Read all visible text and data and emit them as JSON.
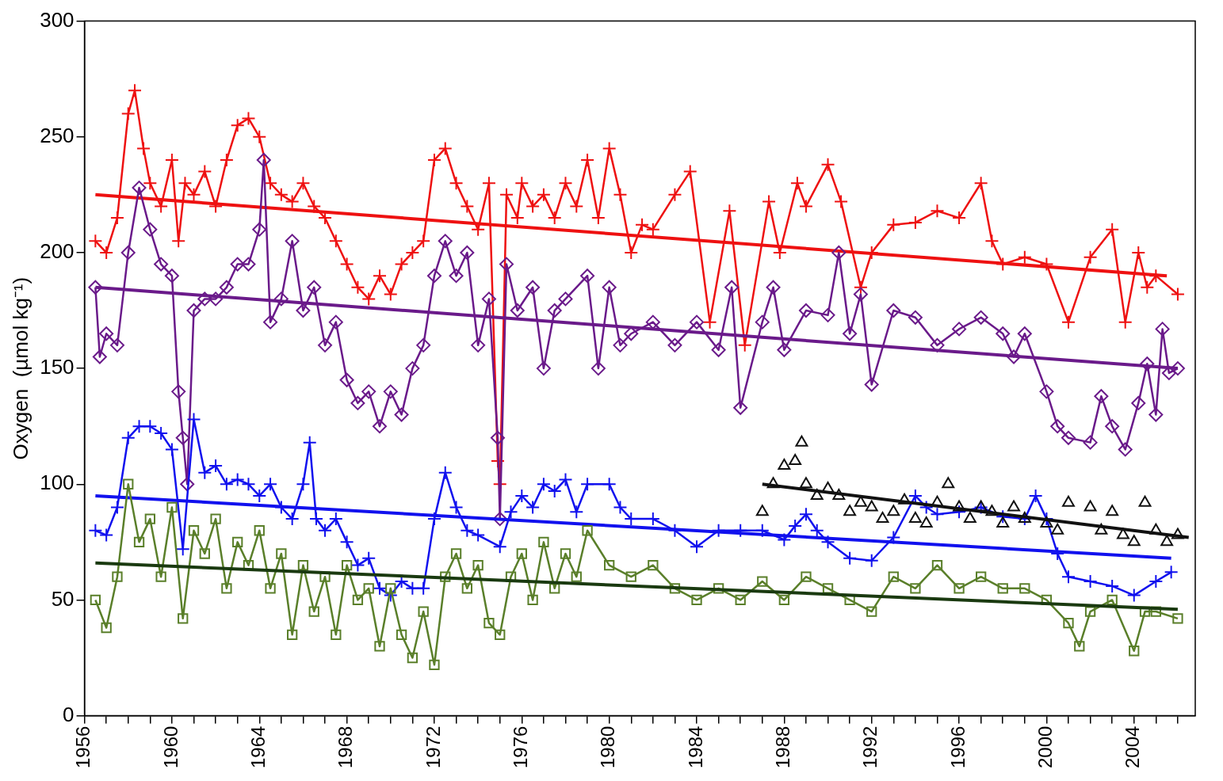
{
  "chart_data": {
    "type": "line",
    "ylabel": "Oxygen  (µmol kg⁻¹)",
    "xlim": [
      1956,
      2006.8
    ],
    "ylim": [
      0,
      300
    ],
    "yticks": [
      0,
      50,
      100,
      150,
      200,
      250,
      300
    ],
    "xticks": [
      1956,
      {
        "value": 1957,
        "label": null
      },
      {
        "value": 1958,
        "label": null
      },
      {
        "value": 1959,
        "label": null
      },
      1960,
      {
        "value": 1961,
        "label": null
      },
      {
        "value": 1962,
        "label": null
      },
      {
        "value": 1963,
        "label": null
      },
      1964,
      {
        "value": 1965,
        "label": null
      },
      {
        "value": 1966,
        "label": null
      },
      {
        "value": 1967,
        "label": null
      },
      1968,
      {
        "value": 1969,
        "label": null
      },
      {
        "value": 1970,
        "label": null
      },
      {
        "value": 1971,
        "label": null
      },
      1972,
      {
        "value": 1973,
        "label": null
      },
      {
        "value": 1974,
        "label": null
      },
      {
        "value": 1975,
        "label": null
      },
      1976,
      {
        "value": 1977,
        "label": null
      },
      {
        "value": 1978,
        "label": null
      },
      {
        "value": 1979,
        "label": null
      },
      1980,
      {
        "value": 1981,
        "label": null
      },
      {
        "value": 1982,
        "label": null
      },
      {
        "value": 1983,
        "label": null
      },
      1984,
      {
        "value": 1985,
        "label": null
      },
      {
        "value": 1986,
        "label": null
      },
      {
        "value": 1987,
        "label": null
      },
      1988,
      {
        "value": 1989,
        "label": null
      },
      {
        "value": 1990,
        "label": null
      },
      {
        "value": 1991,
        "label": null
      },
      1992,
      {
        "value": 1993,
        "label": null
      },
      {
        "value": 1994,
        "label": null
      },
      {
        "value": 1995,
        "label": null
      },
      1996,
      {
        "value": 1997,
        "label": null
      },
      {
        "value": 1998,
        "label": null
      },
      {
        "value": 1999,
        "label": null
      },
      2000,
      {
        "value": 2001,
        "label": null
      },
      {
        "value": 2002,
        "label": null
      },
      {
        "value": 2003,
        "label": null
      },
      2004,
      {
        "value": 2005,
        "label": null
      },
      {
        "value": 2006,
        "label": null
      }
    ],
    "grid": false,
    "legend": false,
    "series": [
      {
        "type": "line",
        "color": "#ee1111",
        "marker": "cross",
        "x": [
          1956.5,
          1957,
          1957.5,
          1958,
          1958.3,
          1958.7,
          1959,
          1959.5,
          1960,
          1960.3,
          1960.6,
          1961,
          1961.5,
          1962,
          1962.5,
          1963,
          1963.5,
          1964,
          1964.5,
          1965,
          1965.5,
          1966,
          1966.5,
          1967,
          1967.5,
          1968,
          1968.5,
          1969,
          1969.5,
          1970,
          1970.5,
          1971,
          1971.5,
          1972,
          1972.5,
          1973,
          1973.5,
          1974,
          1974.5,
          1974.9,
          1975,
          1975.3,
          1975.8,
          1976,
          1976.5,
          1977,
          1977.5,
          1978,
          1978.5,
          1979,
          1979.5,
          1980,
          1980.5,
          1981,
          1981.5,
          1982,
          1983,
          1983.7,
          1984.6,
          1985.5,
          1986.2,
          1987.3,
          1987.8,
          1988.6,
          1989,
          1990,
          1990.6,
          1991.5,
          1992,
          1993,
          1994,
          1995,
          1996,
          1997,
          1997.5,
          1998,
          1999,
          2000,
          2001,
          2002,
          2003,
          2003.6,
          2004.2,
          2004.6,
          2005,
          2006
        ],
        "values": [
          205,
          200,
          215,
          260,
          270,
          245,
          230,
          220,
          240,
          205,
          230,
          225,
          235,
          220,
          240,
          255,
          258,
          250,
          230,
          225,
          222,
          230,
          220,
          215,
          205,
          195,
          185,
          180,
          190,
          182,
          195,
          200,
          205,
          240,
          245,
          230,
          220,
          210,
          230,
          110,
          100,
          225,
          215,
          230,
          220,
          225,
          215,
          230,
          220,
          240,
          215,
          245,
          225,
          200,
          212,
          210,
          225,
          235,
          170,
          218,
          160,
          222,
          200,
          230,
          220,
          238,
          222,
          185,
          200,
          212,
          213,
          218,
          215,
          230,
          205,
          195,
          198,
          195,
          170,
          198,
          210,
          170,
          200,
          185,
          190,
          182
        ]
      },
      {
        "type": "line",
        "color": "#ee1111",
        "marker": "none",
        "x": [
          1956.5,
          2005.5
        ],
        "values": [
          225,
          190
        ]
      },
      {
        "type": "line",
        "color": "#6a1a8a",
        "marker": "diamond",
        "x": [
          1956.5,
          1956.7,
          1957,
          1957.5,
          1958,
          1958.5,
          1959,
          1959.5,
          1960,
          1960.3,
          1960.5,
          1960.7,
          1961,
          1961.5,
          1962,
          1962.5,
          1963,
          1963.5,
          1964,
          1964.2,
          1964.5,
          1965,
          1965.5,
          1966,
          1966.5,
          1967,
          1967.5,
          1968,
          1968.5,
          1969,
          1969.5,
          1970,
          1970.5,
          1971,
          1971.5,
          1972,
          1972.5,
          1973,
          1973.5,
          1974,
          1974.5,
          1974.9,
          1975,
          1975.3,
          1975.8,
          1976.5,
          1977,
          1977.5,
          1978,
          1979,
          1979.5,
          1980,
          1980.5,
          1981,
          1982,
          1983,
          1984,
          1985,
          1985.6,
          1986,
          1987,
          1987.5,
          1988,
          1989,
          1990,
          1990.5,
          1991,
          1991.5,
          1992,
          1993,
          1994,
          1995,
          1996,
          1997,
          1998,
          1998.5,
          1999,
          2000,
          2000.5,
          2001,
          2002,
          2002.5,
          2003,
          2003.6,
          2004.2,
          2004.6,
          2005,
          2005.3,
          2005.6,
          2006
        ],
        "values": [
          185,
          155,
          165,
          160,
          200,
          228,
          210,
          195,
          190,
          140,
          120,
          100,
          175,
          180,
          180,
          185,
          195,
          195,
          210,
          240,
          170,
          180,
          205,
          175,
          185,
          160,
          170,
          145,
          135,
          140,
          125,
          140,
          130,
          150,
          160,
          190,
          205,
          190,
          200,
          160,
          180,
          120,
          85,
          195,
          175,
          185,
          150,
          175,
          180,
          190,
          150,
          185,
          160,
          165,
          170,
          160,
          170,
          158,
          185,
          133,
          170,
          185,
          158,
          175,
          173,
          200,
          165,
          182,
          143,
          175,
          172,
          160,
          167,
          172,
          165,
          155,
          165,
          140,
          125,
          120,
          118,
          138,
          125,
          115,
          135,
          152,
          130,
          167,
          148,
          150
        ]
      },
      {
        "type": "line",
        "color": "#6a1a8a",
        "marker": "none",
        "x": [
          1956.5,
          2006
        ],
        "values": [
          185,
          150
        ]
      },
      {
        "type": "line",
        "color": "#1111ee",
        "marker": "cross",
        "x": [
          1956.5,
          1957,
          1957.5,
          1958,
          1958.5,
          1959,
          1959.5,
          1960,
          1960.5,
          1961,
          1961.5,
          1962,
          1962.5,
          1963,
          1963.5,
          1964,
          1964.5,
          1965,
          1965.5,
          1966,
          1966.3,
          1966.6,
          1967,
          1967.5,
          1968,
          1968.5,
          1969,
          1969.5,
          1970,
          1970.5,
          1971,
          1971.5,
          1972,
          1972.5,
          1973,
          1973.5,
          1974,
          1975,
          1975.5,
          1976,
          1976.5,
          1977,
          1977.5,
          1978,
          1978.5,
          1979,
          1980,
          1980.5,
          1981,
          1982,
          1983,
          1984,
          1985,
          1986,
          1987,
          1988,
          1988.5,
          1989,
          1989.5,
          1990,
          1991,
          1992,
          1993,
          1994,
          1994.5,
          1995,
          1996,
          1997,
          1998,
          1999,
          1999.5,
          2000,
          2000.5,
          2001,
          2002,
          2003,
          2004,
          2005,
          2005.7
        ],
        "values": [
          80,
          78,
          90,
          120,
          125,
          125,
          122,
          115,
          72,
          128,
          105,
          108,
          100,
          102,
          100,
          95,
          100,
          90,
          85,
          100,
          118,
          85,
          80,
          85,
          75,
          65,
          68,
          55,
          52,
          58,
          55,
          55,
          85,
          105,
          90,
          80,
          78,
          73,
          88,
          95,
          90,
          100,
          97,
          102,
          88,
          100,
          100,
          90,
          85,
          85,
          80,
          73,
          80,
          80,
          80,
          76,
          82,
          87,
          80,
          75,
          68,
          67,
          77,
          95,
          90,
          87,
          88,
          90,
          86,
          85,
          95,
          85,
          70,
          60,
          58,
          56,
          52,
          58,
          62
        ]
      },
      {
        "type": "line",
        "color": "#1111ee",
        "marker": "none",
        "x": [
          1956.5,
          2005.7
        ],
        "values": [
          95,
          68
        ]
      },
      {
        "type": "line",
        "color": "#5a7f2a",
        "marker": "square",
        "x": [
          1956.5,
          1957,
          1957.5,
          1958,
          1958.5,
          1959,
          1959.5,
          1960,
          1960.5,
          1961,
          1961.5,
          1962,
          1962.5,
          1963,
          1963.5,
          1964,
          1964.5,
          1965,
          1965.5,
          1966,
          1966.5,
          1967,
          1967.5,
          1968,
          1968.5,
          1969,
          1969.5,
          1970,
          1970.5,
          1971,
          1971.5,
          1972,
          1972.5,
          1973,
          1973.5,
          1974,
          1974.5,
          1975,
          1975.5,
          1976,
          1976.5,
          1977,
          1977.5,
          1978,
          1978.5,
          1979,
          1980,
          1981,
          1982,
          1983,
          1984,
          1985,
          1986,
          1987,
          1988,
          1989,
          1990,
          1991,
          1992,
          1993,
          1994,
          1995,
          1996,
          1997,
          1998,
          1999,
          2000,
          2001,
          2001.5,
          2002,
          2003,
          2004,
          2004.5,
          2005,
          2006
        ],
        "values": [
          50,
          38,
          60,
          100,
          75,
          85,
          60,
          90,
          42,
          80,
          70,
          85,
          55,
          75,
          65,
          80,
          55,
          70,
          35,
          65,
          45,
          60,
          35,
          65,
          50,
          55,
          30,
          55,
          35,
          25,
          45,
          22,
          60,
          70,
          55,
          65,
          40,
          35,
          60,
          70,
          50,
          75,
          55,
          70,
          60,
          80,
          65,
          60,
          65,
          55,
          50,
          55,
          50,
          58,
          50,
          60,
          55,
          50,
          45,
          60,
          55,
          65,
          55,
          60,
          55,
          55,
          50,
          40,
          30,
          45,
          50,
          28,
          45,
          45,
          42
        ]
      },
      {
        "type": "line",
        "color": "#1a3a10",
        "marker": "none",
        "x": [
          1956.5,
          2006
        ],
        "values": [
          66,
          46
        ]
      },
      {
        "type": "scatter",
        "color": "#111111",
        "marker": "triangle",
        "x": [
          1987,
          1987.5,
          1988,
          1988.5,
          1988.8,
          1989,
          1989.5,
          1990,
          1990.5,
          1991,
          1991.5,
          1992,
          1992.5,
          1993,
          1993.5,
          1994,
          1994.5,
          1995,
          1995.5,
          1996,
          1996.5,
          1997,
          1997.5,
          1998,
          1998.5,
          1999,
          2000,
          2000.5,
          2001,
          2002,
          2002.5,
          2003,
          2003.5,
          2004,
          2004.5,
          2005,
          2005.5,
          2006
        ],
        "values": [
          88,
          100,
          108,
          110,
          118,
          100,
          95,
          98,
          95,
          88,
          92,
          90,
          85,
          88,
          93,
          85,
          83,
          92,
          100,
          90,
          85,
          90,
          88,
          83,
          90,
          85,
          83,
          80,
          92,
          90,
          80,
          88,
          78,
          75,
          92,
          80,
          75,
          78
        ]
      },
      {
        "type": "line",
        "color": "#111111",
        "marker": "none",
        "x": [
          1987,
          2006.5
        ],
        "values": [
          100,
          77
        ]
      }
    ]
  }
}
